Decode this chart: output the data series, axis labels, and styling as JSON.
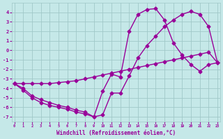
{
  "bg_color": "#c5e8e8",
  "grid_color": "#a0c8c8",
  "line_color": "#990099",
  "marker": "D",
  "markersize": 2.5,
  "linewidth": 1.0,
  "xlim": [
    -0.3,
    23.3
  ],
  "ylim": [
    -7.5,
    5.0
  ],
  "xticks": [
    0,
    1,
    2,
    3,
    4,
    5,
    6,
    7,
    8,
    9,
    10,
    11,
    12,
    13,
    14,
    15,
    16,
    17,
    18,
    19,
    20,
    21,
    22,
    23
  ],
  "yticks": [
    -7,
    -6,
    -5,
    -4,
    -3,
    -2,
    -1,
    0,
    1,
    2,
    3,
    4
  ],
  "xlabel": "Windchill (Refroidissement éolien,°C)",
  "line1_x": [
    0,
    1,
    2,
    3,
    4,
    5,
    6,
    7,
    8,
    9,
    10,
    11,
    12,
    13,
    14,
    15,
    16,
    17,
    18,
    19,
    20,
    21,
    22,
    23
  ],
  "line1_y": [
    -3.5,
    -4.0,
    -4.8,
    -5.2,
    -5.5,
    -5.8,
    -6.0,
    -6.3,
    -6.5,
    -7.0,
    -4.3,
    -2.5,
    -2.8,
    2.0,
    3.8,
    4.3,
    4.4,
    3.2,
    0.8,
    -0.5,
    -1.5,
    -2.2,
    -1.5,
    -1.3
  ],
  "line2_x": [
    0,
    1,
    2,
    3,
    4,
    5,
    6,
    7,
    8,
    9,
    10,
    11,
    12,
    13,
    14,
    15,
    16,
    17,
    18,
    19,
    20,
    21,
    22,
    23
  ],
  "line2_y": [
    -3.5,
    -3.5,
    -3.5,
    -3.5,
    -3.5,
    -3.4,
    -3.3,
    -3.2,
    -3.0,
    -2.8,
    -2.6,
    -2.4,
    -2.2,
    -2.0,
    -1.8,
    -1.6,
    -1.4,
    -1.2,
    -1.0,
    -0.8,
    -0.6,
    -0.4,
    -0.2,
    -1.3
  ],
  "line3_x": [
    0,
    1,
    2,
    3,
    4,
    5,
    6,
    7,
    8,
    9,
    10,
    11,
    12,
    13,
    14,
    15,
    16,
    17,
    18,
    19,
    20,
    21,
    22,
    23
  ],
  "line3_y": [
    -3.5,
    -4.2,
    -5.0,
    -5.5,
    -5.8,
    -6.0,
    -6.2,
    -6.5,
    -6.7,
    -7.0,
    -6.8,
    -4.5,
    -4.5,
    -2.7,
    -0.8,
    0.5,
    1.5,
    2.5,
    3.2,
    3.8,
    4.1,
    3.8,
    2.5,
    -1.3
  ]
}
